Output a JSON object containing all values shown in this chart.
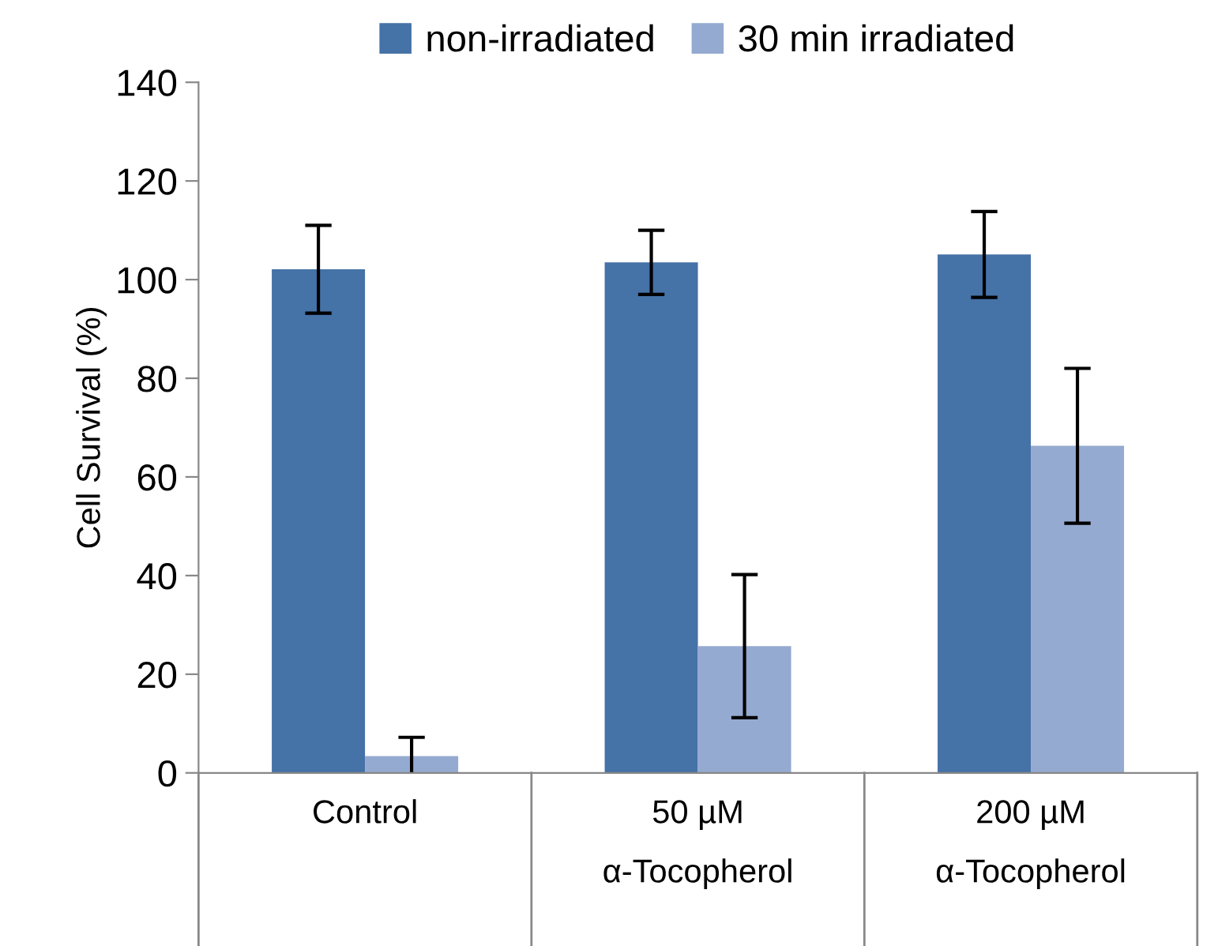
{
  "chart_data": {
    "type": "bar",
    "ylabel": "Cell Survival (%)",
    "categories": [
      "Control",
      "50 µM\nα-Tocopherol",
      "200 µM\nα-Tocopherol"
    ],
    "series": [
      {
        "name": "non-irradiated",
        "color": "#4572a7",
        "values": [
          102.1,
          103.5,
          105.1
        ],
        "errors": [
          8.9,
          6.5,
          8.7
        ]
      },
      {
        "name": "30 min irradiated",
        "color": "#95aad0",
        "values": [
          3.4,
          25.7,
          66.3
        ],
        "errors": [
          3.8,
          14.5,
          15.7
        ]
      }
    ],
    "ylim": [
      0,
      140
    ],
    "yticks": [
      0,
      20,
      40,
      60,
      80,
      100,
      120,
      140
    ],
    "grid": false,
    "legend": "top"
  }
}
